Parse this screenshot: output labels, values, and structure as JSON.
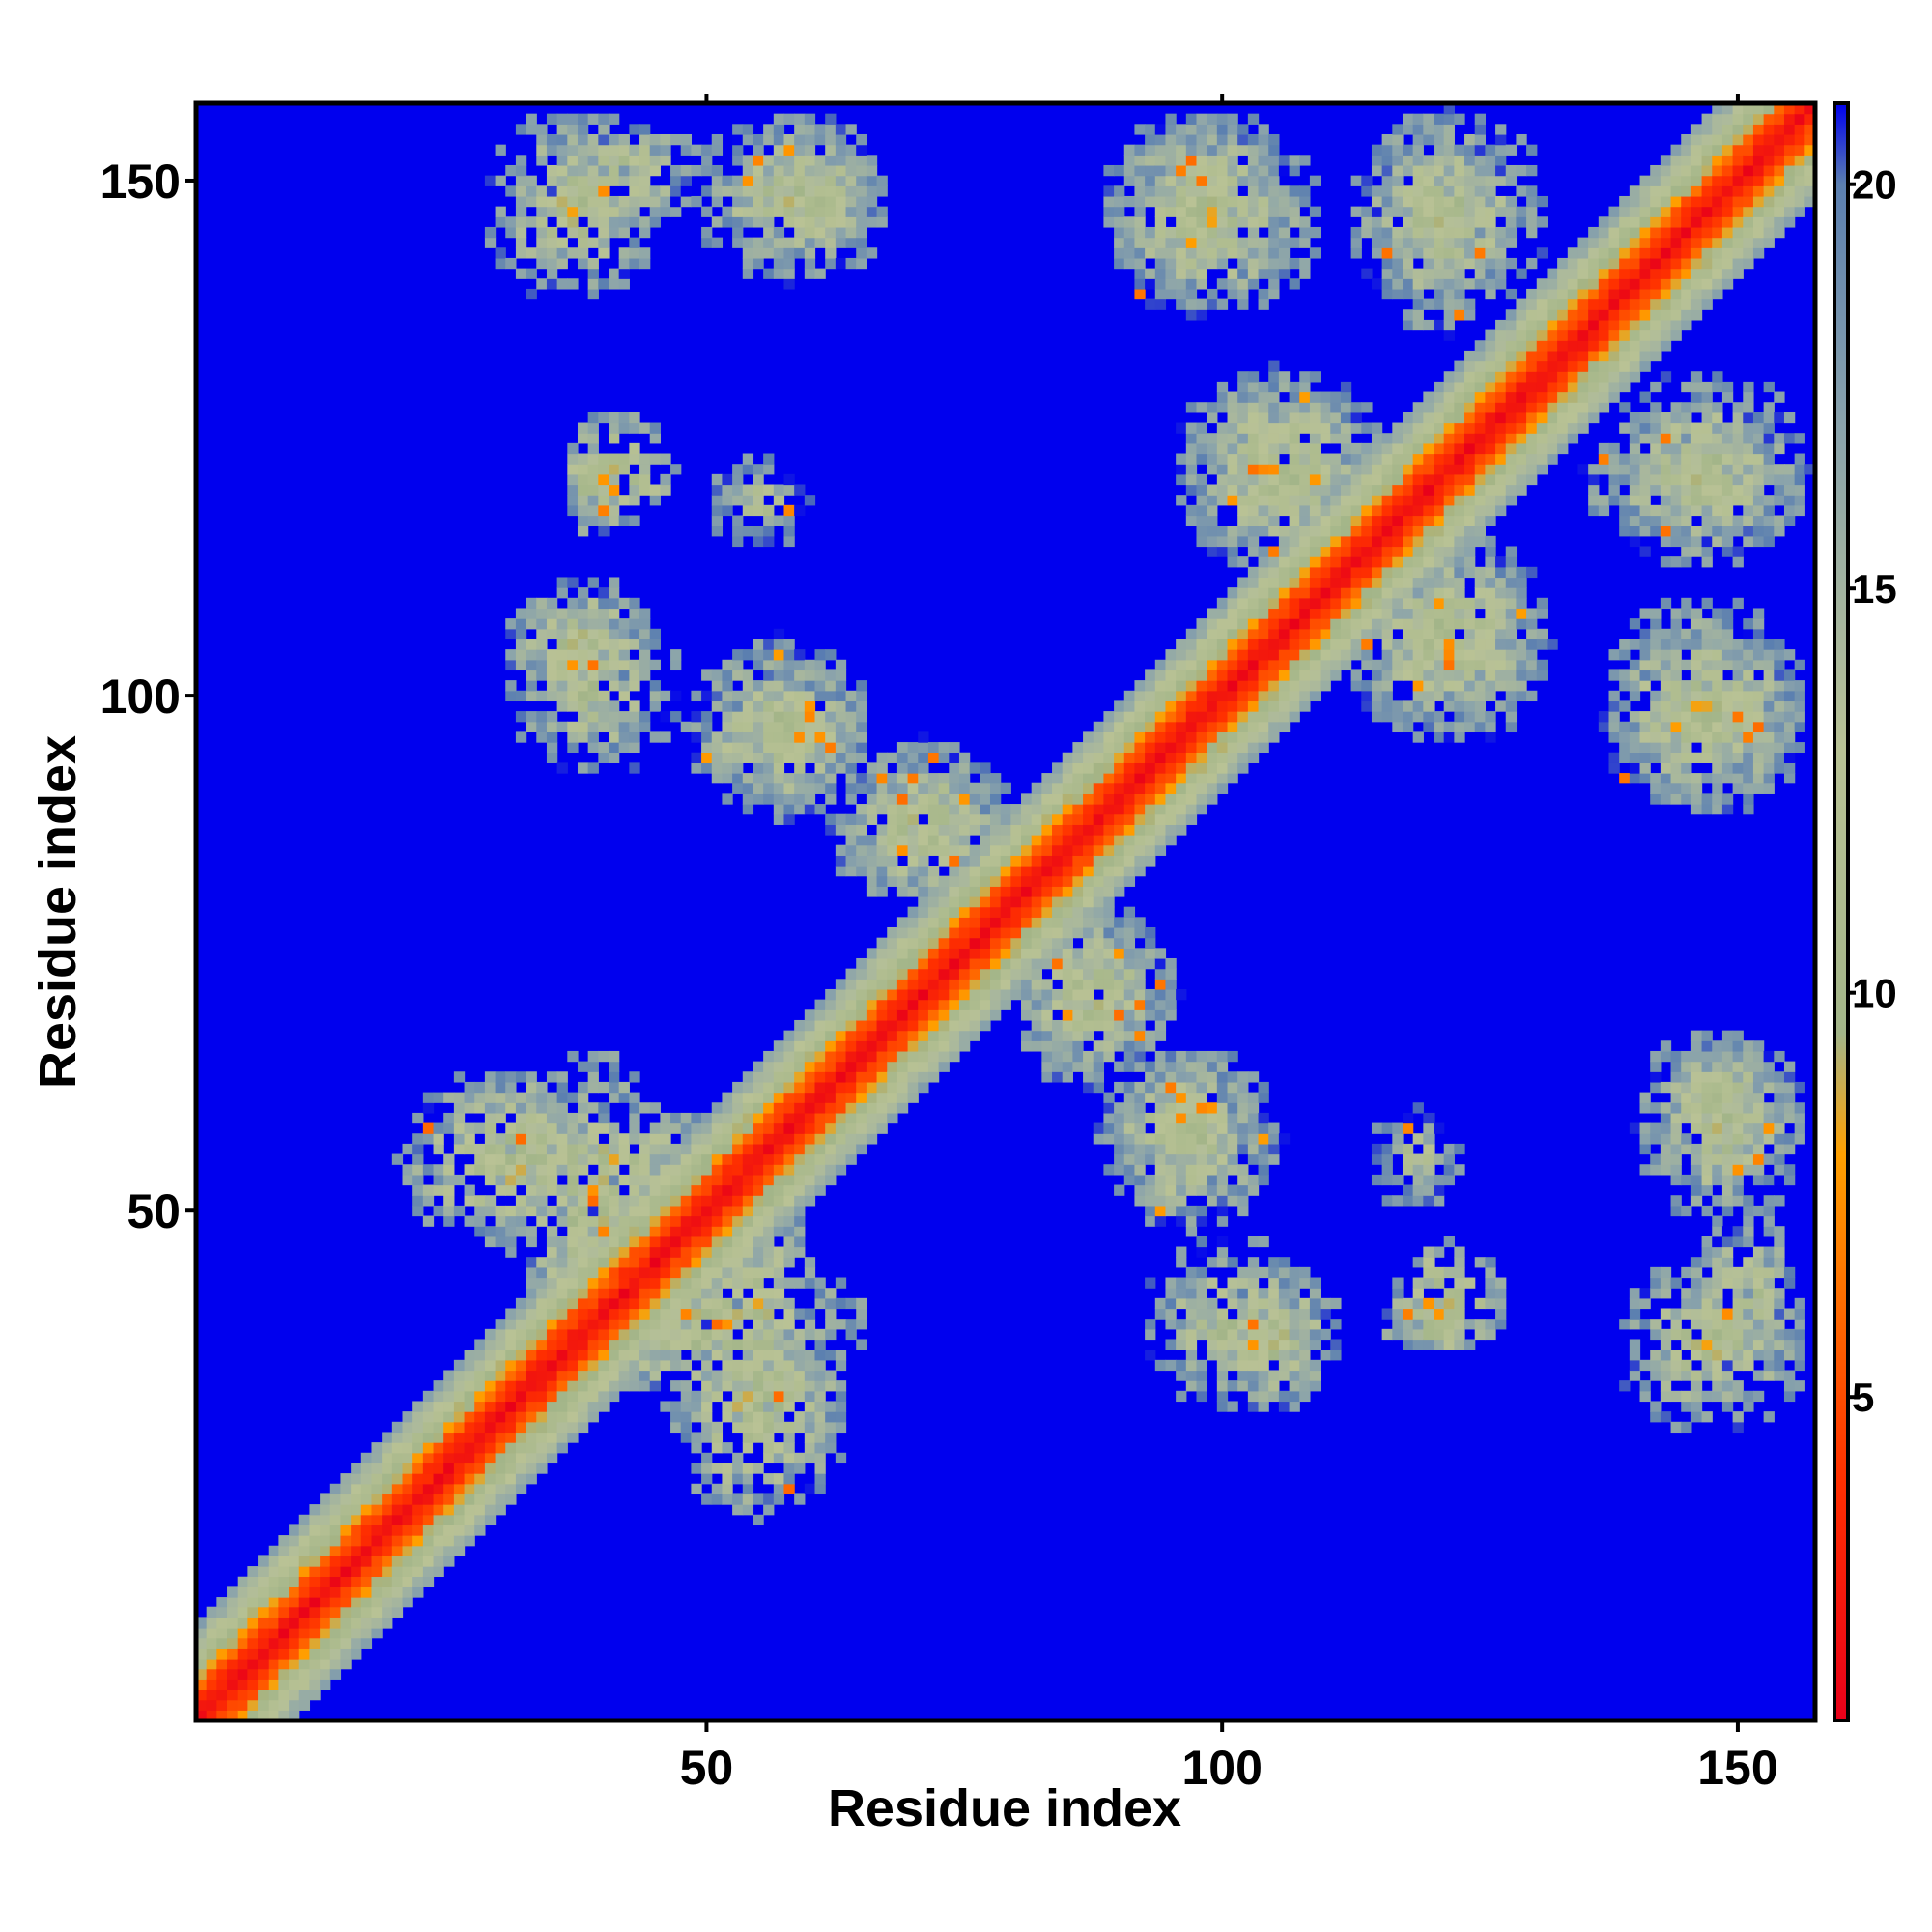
{
  "chart_data": {
    "type": "heatmap",
    "title": "",
    "xlabel": "Residue index",
    "ylabel": "Residue index",
    "xlim": [
      1,
      157
    ],
    "ylim": [
      1,
      157
    ],
    "x_ticks": [
      50,
      100,
      150
    ],
    "y_ticks": [
      50,
      100,
      150
    ],
    "colorbar": {
      "ticks": [
        5,
        10,
        15,
        20
      ],
      "range": [
        1,
        21
      ],
      "stops": [
        {
          "value": 1,
          "color": "#e8001a"
        },
        {
          "value": 4,
          "color": "#ff3000"
        },
        {
          "value": 8,
          "color": "#ffa000"
        },
        {
          "value": 9.5,
          "color": "#a3b589"
        },
        {
          "value": 13,
          "color": "#b9c295"
        },
        {
          "value": 17,
          "color": "#8aa3ab"
        },
        {
          "value": 20,
          "color": "#5b7fb0"
        },
        {
          "value": 21,
          "color": "#0000ee"
        }
      ]
    },
    "background_value": 21,
    "diagonal_band": {
      "core_width": 3,
      "halo_width": 9
    },
    "contact_blocks": [
      {
        "x": [
          32,
          46
        ],
        "y": [
          34,
          66
        ],
        "intensity": 0.8
      },
      {
        "x": [
          46,
          64
        ],
        "y": [
          20,
          42
        ],
        "intensity": 0.8
      },
      {
        "x": [
          28,
          52
        ],
        "y": [
          48,
          62
        ],
        "intensity": 0.6
      },
      {
        "x": [
          36,
          42
        ],
        "y": [
          115,
          126
        ],
        "intensity": 0.9
      },
      {
        "x": [
          30,
          45
        ],
        "y": [
          98,
          112
        ],
        "intensity": 0.6
      },
      {
        "x": [
          48,
          66
        ],
        "y": [
          88,
          106
        ],
        "intensity": 0.6
      },
      {
        "x": [
          62,
          80
        ],
        "y": [
          78,
          96
        ],
        "intensity": 0.5
      },
      {
        "x": [
          80,
          96
        ],
        "y": [
          62,
          80
        ],
        "intensity": 0.6
      },
      {
        "x": [
          88,
          104
        ],
        "y": [
          50,
          66
        ],
        "intensity": 0.6
      },
      {
        "x": [
          92,
          110
        ],
        "y": [
          30,
          48
        ],
        "intensity": 0.5
      },
      {
        "x": [
          116,
          128
        ],
        "y": [
          36,
          47
        ],
        "intensity": 0.9
      },
      {
        "x": [
          114,
          124
        ],
        "y": [
          50,
          60
        ],
        "intensity": 0.4
      },
      {
        "x": [
          34,
          50
        ],
        "y": [
          145,
          157
        ],
        "intensity": 0.5
      },
      {
        "x": [
          48,
          68
        ],
        "y": [
          140,
          157
        ],
        "intensity": 0.5
      },
      {
        "x": [
          88,
          108
        ],
        "y": [
          138,
          157
        ],
        "intensity": 0.6
      },
      {
        "x": [
          114,
          128
        ],
        "y": [
          134,
          157
        ],
        "intensity": 0.6
      },
      {
        "x": [
          95,
          115
        ],
        "y": [
          112,
          132
        ],
        "intensity": 0.6
      },
      {
        "x": [
          112,
          132
        ],
        "y": [
          96,
          116
        ],
        "intensity": 0.6
      },
      {
        "x": [
          137,
          157
        ],
        "y": [
          112,
          132
        ],
        "intensity": 0.6
      },
      {
        "x": [
          136,
          157
        ],
        "y": [
          88,
          110
        ],
        "intensity": 0.6
      },
      {
        "x": [
          140,
          157
        ],
        "y": [
          52,
          68
        ],
        "intensity": 0.6
      },
      {
        "x": [
          138,
          157
        ],
        "y": [
          28,
          46
        ],
        "intensity": 0.6
      }
    ]
  }
}
